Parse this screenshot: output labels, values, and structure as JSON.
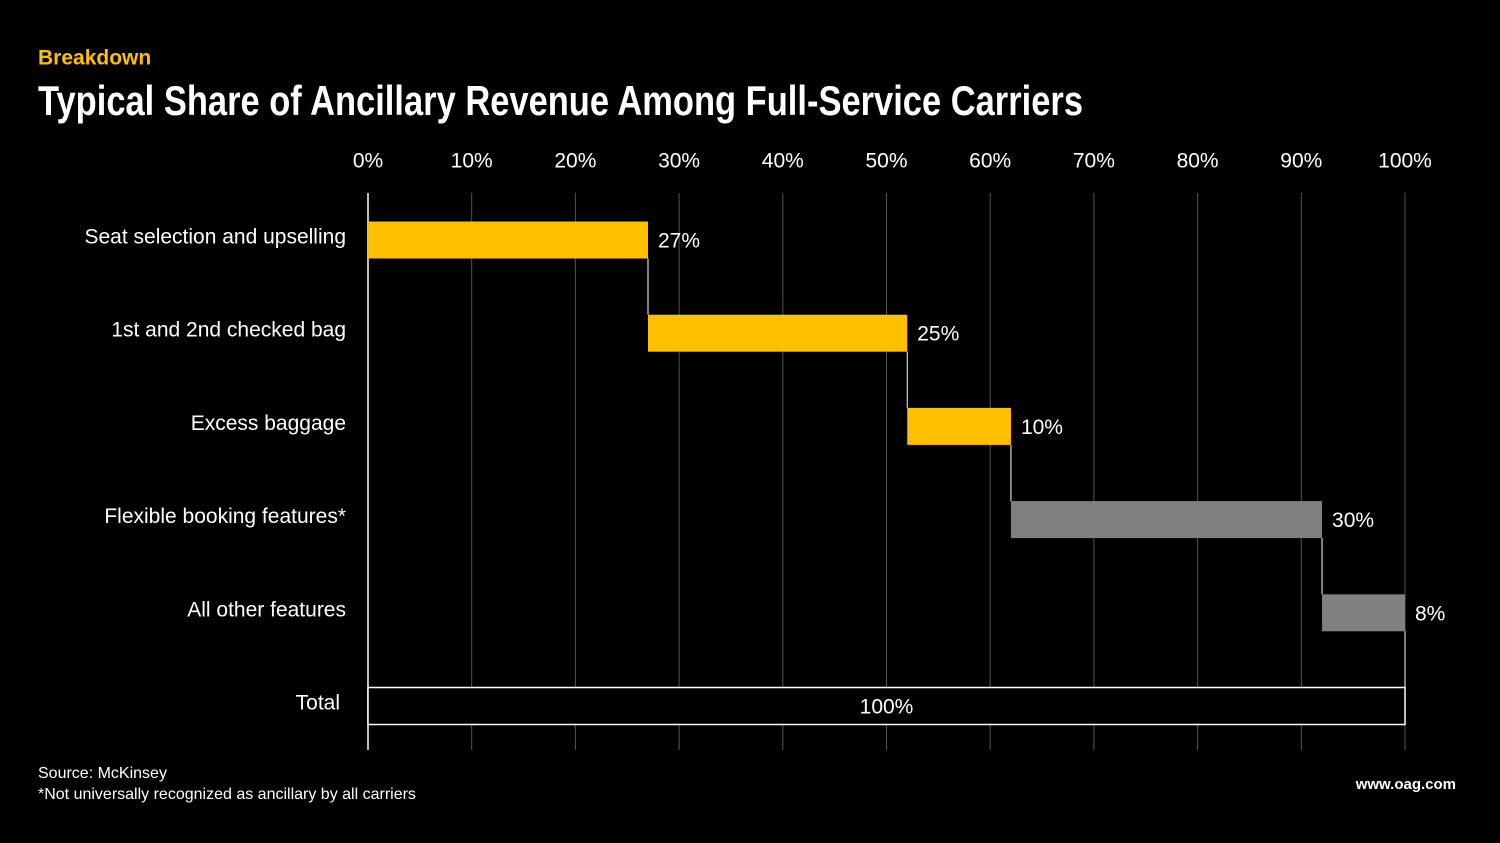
{
  "chart_data": {
    "type": "waterfall",
    "subtitle": "Breakdown",
    "title": "Typical Share of Ancillary Revenue Among Full-Service Carriers",
    "categories": [
      "Seat selection and upselling",
      "1st and 2nd checked bag",
      "Excess baggage",
      "Flexible booking features*",
      "All other features"
    ],
    "values": [
      27,
      25,
      10,
      30,
      8
    ],
    "value_labels": [
      "27%",
      "25%",
      "10%",
      "30%",
      "8%"
    ],
    "colors": [
      "#ffc000",
      "#ffc000",
      "#ffc000",
      "#808080",
      "#808080"
    ],
    "total": {
      "label": "Total",
      "value": 100,
      "value_label": "100%",
      "color": "#000000"
    },
    "xlim": [
      0,
      100
    ],
    "xticks": [
      {
        "value": 0,
        "label": "0%"
      },
      {
        "value": 10,
        "label": "10%"
      },
      {
        "value": 20,
        "label": "20%"
      },
      {
        "value": 30,
        "label": "30%"
      },
      {
        "value": 40,
        "label": "40%"
      },
      {
        "value": 50,
        "label": "50%"
      },
      {
        "value": 60,
        "label": "60%"
      },
      {
        "value": 70,
        "label": "70%"
      },
      {
        "value": 80,
        "label": "80%"
      },
      {
        "value": 90,
        "label": "90%"
      },
      {
        "value": 100,
        "label": "100%"
      }
    ],
    "grid": true,
    "notes": [
      "Source: McKinsey",
      "*Not universally recognized as ancillary by all carriers"
    ],
    "website": "www.oag.com"
  }
}
